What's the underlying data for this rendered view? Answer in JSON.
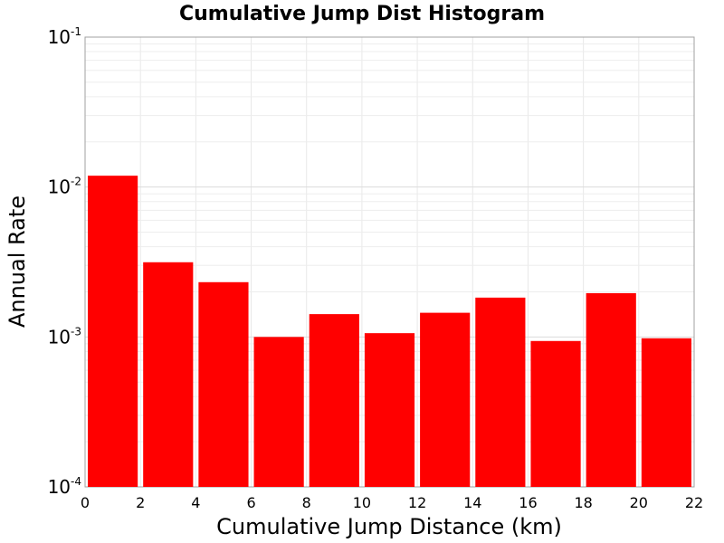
{
  "chart_data": {
    "type": "bar",
    "title": "Cumulative Jump Dist Histogram",
    "xlabel": "Cumulative Jump Distance (km)",
    "ylabel": "Annual Rate",
    "xlim": [
      0,
      22
    ],
    "ylim": [
      0.0001,
      0.1
    ],
    "yscale": "log",
    "grid": true,
    "x_ticks": [
      "0",
      "2",
      "4",
      "6",
      "8",
      "10",
      "12",
      "14",
      "16",
      "18",
      "20",
      "22"
    ],
    "y_ticks": [
      {
        "base": "10",
        "exp": "-4",
        "value": 0.0001
      },
      {
        "base": "10",
        "exp": "-3",
        "value": 0.001
      },
      {
        "base": "10",
        "exp": "-2",
        "value": 0.01
      },
      {
        "base": "10",
        "exp": "-1",
        "value": 0.1
      }
    ],
    "bar_color": "#ff0000",
    "bins": [
      {
        "x_start": 0,
        "x_end": 2,
        "value": 0.0119
      },
      {
        "x_start": 2,
        "x_end": 4,
        "value": 0.00315
      },
      {
        "x_start": 4,
        "x_end": 6,
        "value": 0.00232
      },
      {
        "x_start": 6,
        "x_end": 8,
        "value": 0.001
      },
      {
        "x_start": 8,
        "x_end": 10,
        "value": 0.00142
      },
      {
        "x_start": 10,
        "x_end": 12,
        "value": 0.00106
      },
      {
        "x_start": 12,
        "x_end": 14,
        "value": 0.00145
      },
      {
        "x_start": 14,
        "x_end": 16,
        "value": 0.00183
      },
      {
        "x_start": 16,
        "x_end": 18,
        "value": 0.00094
      },
      {
        "x_start": 18,
        "x_end": 20,
        "value": 0.00196
      },
      {
        "x_start": 20,
        "x_end": 22,
        "value": 0.00098
      }
    ]
  }
}
